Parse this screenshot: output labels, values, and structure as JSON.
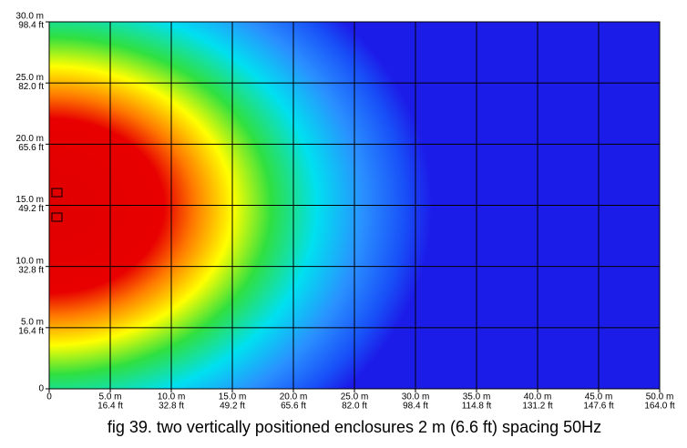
{
  "chart_data": {
    "type": "heatmap",
    "caption": "fig 39. two vertically positioned enclosures 2 m (6.6 ft) spacing 50Hz",
    "xlim": [
      0,
      50
    ],
    "ylim": [
      0,
      30
    ],
    "grid": true,
    "xticks": [
      {
        "value": 0,
        "label": "0"
      },
      {
        "value": 5,
        "label": "5.0 m",
        "label_ft": "16.4 ft"
      },
      {
        "value": 10,
        "label": "10.0 m",
        "label_ft": "32.8 ft"
      },
      {
        "value": 15,
        "label": "15.0 m",
        "label_ft": "49.2 ft"
      },
      {
        "value": 20,
        "label": "20.0 m",
        "label_ft": "65.6 ft"
      },
      {
        "value": 25,
        "label": "25.0 m",
        "label_ft": "82.0 ft"
      },
      {
        "value": 30,
        "label": "30.0 m",
        "label_ft": "98.4 ft"
      },
      {
        "value": 35,
        "label": "35.0 m",
        "label_ft": "114.8 ft"
      },
      {
        "value": 40,
        "label": "40.0 m",
        "label_ft": "131.2 ft"
      },
      {
        "value": 45,
        "label": "45.0 m",
        "label_ft": "147.6 ft"
      },
      {
        "value": 50,
        "label": "50.0 m",
        "label_ft": "164.0 ft"
      }
    ],
    "yticks": [
      {
        "value": 0,
        "label": "0"
      },
      {
        "value": 5,
        "label": "5.0 m",
        "label_ft": "16.4 ft"
      },
      {
        "value": 10,
        "label": "10.0 m",
        "label_ft": "32.8 ft"
      },
      {
        "value": 15,
        "label": "15.0 m",
        "label_ft": "49.2 ft"
      },
      {
        "value": 20,
        "label": "20.0 m",
        "label_ft": "65.6 ft"
      },
      {
        "value": 25,
        "label": "25.0 m",
        "label_ft": "82.0 ft"
      },
      {
        "value": 30,
        "label": "30.0 m",
        "label_ft": "98.4 ft"
      }
    ]
  }
}
